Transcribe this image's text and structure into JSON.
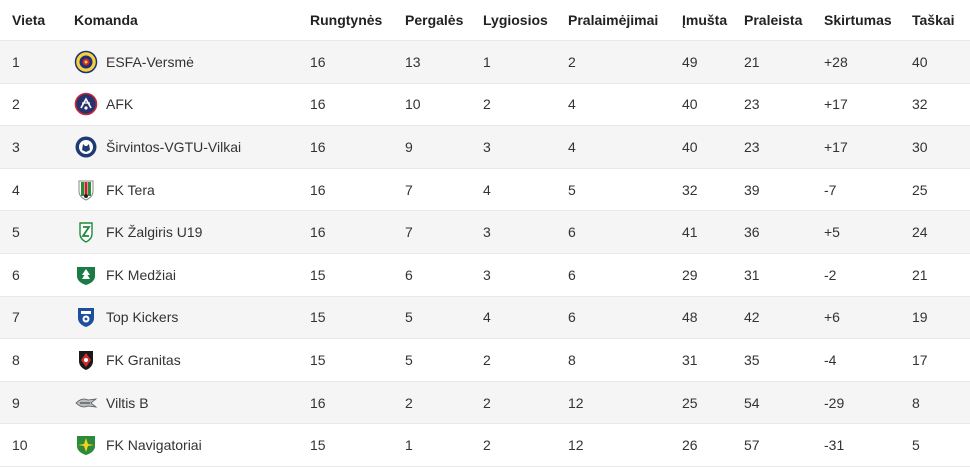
{
  "columns": {
    "position": "Vieta",
    "team": "Komanda",
    "played": "Rungtynės",
    "won": "Pergalės",
    "drawn": "Lygiosios",
    "lost": "Pralaimėjimai",
    "goals_for": "Įmušta",
    "goals_against": "Praleista",
    "goal_diff": "Skirtumas",
    "points": "Taškai"
  },
  "rows": [
    {
      "position": "1",
      "team": "ESFA-Versmė",
      "played": "16",
      "won": "13",
      "drawn": "1",
      "lost": "2",
      "goals_for": "49",
      "goals_against": "21",
      "goal_diff": "+28",
      "points": "40",
      "logo": "esfa-versme-logo"
    },
    {
      "position": "2",
      "team": "AFK",
      "played": "16",
      "won": "10",
      "drawn": "2",
      "lost": "4",
      "goals_for": "40",
      "goals_against": "23",
      "goal_diff": "+17",
      "points": "32",
      "logo": "afk-logo"
    },
    {
      "position": "3",
      "team": "Širvintos-VGTU-Vilkai",
      "played": "16",
      "won": "9",
      "drawn": "3",
      "lost": "4",
      "goals_for": "40",
      "goals_against": "23",
      "goal_diff": "+17",
      "points": "30",
      "logo": "sirvintos-vgtu-vilkai-logo"
    },
    {
      "position": "4",
      "team": "FK Tera",
      "played": "16",
      "won": "7",
      "drawn": "4",
      "lost": "5",
      "goals_for": "32",
      "goals_against": "39",
      "goal_diff": "-7",
      "points": "25",
      "logo": "fk-tera-logo"
    },
    {
      "position": "5",
      "team": "FK Žalgiris U19",
      "played": "16",
      "won": "7",
      "drawn": "3",
      "lost": "6",
      "goals_for": "41",
      "goals_against": "36",
      "goal_diff": "+5",
      "points": "24",
      "logo": "fk-zalgiris-logo"
    },
    {
      "position": "6",
      "team": "FK Medžiai",
      "played": "15",
      "won": "6",
      "drawn": "3",
      "lost": "6",
      "goals_for": "29",
      "goals_against": "31",
      "goal_diff": "-2",
      "points": "21",
      "logo": "fk-medziai-logo"
    },
    {
      "position": "7",
      "team": "Top Kickers",
      "played": "15",
      "won": "5",
      "drawn": "4",
      "lost": "6",
      "goals_for": "48",
      "goals_against": "42",
      "goal_diff": "+6",
      "points": "19",
      "logo": "top-kickers-logo"
    },
    {
      "position": "8",
      "team": "FK Granitas",
      "played": "15",
      "won": "5",
      "drawn": "2",
      "lost": "8",
      "goals_for": "31",
      "goals_against": "35",
      "goal_diff": "-4",
      "points": "17",
      "logo": "fk-granitas-logo"
    },
    {
      "position": "9",
      "team": "Viltis B",
      "played": "16",
      "won": "2",
      "drawn": "2",
      "lost": "12",
      "goals_for": "25",
      "goals_against": "54",
      "goal_diff": "-29",
      "points": "8",
      "logo": "viltis-b-logo"
    },
    {
      "position": "10",
      "team": "FK Navigatoriai",
      "played": "15",
      "won": "1",
      "drawn": "2",
      "lost": "12",
      "goals_for": "26",
      "goals_against": "57",
      "goal_diff": "-31",
      "points": "5",
      "logo": "fk-navigatoriai-logo"
    }
  ]
}
